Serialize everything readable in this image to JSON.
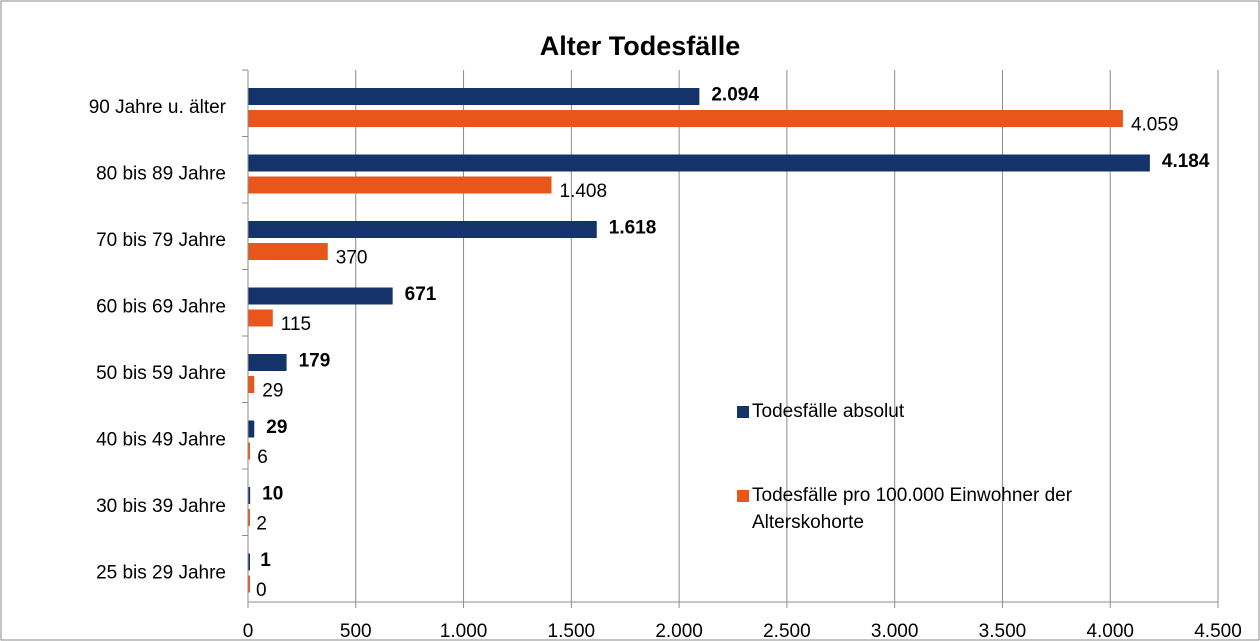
{
  "chart_data": {
    "type": "hbar",
    "title": "Alter Todesfälle",
    "categories": [
      "90 Jahre u. älter",
      "80 bis 89 Jahre",
      "70 bis 79 Jahre",
      "60 bis 69 Jahre",
      "50 bis 59 Jahre",
      "40 bis 49 Jahre",
      "30 bis 39 Jahre",
      "25 bis 29 Jahre"
    ],
    "series": [
      {
        "name": "Todesfälle absolut",
        "color": "#14336b",
        "values": [
          2094,
          4184,
          1618,
          671,
          179,
          29,
          10,
          1
        ],
        "value_labels": [
          "2.094",
          "4.184",
          "1.618",
          "671",
          "179",
          "29",
          "10",
          "1"
        ]
      },
      {
        "name": "Todesfälle pro 100.000 Einwohner der Alterskohorte",
        "color": "#e8561c",
        "values": [
          4059,
          1408,
          370,
          115,
          29,
          6,
          2,
          0
        ],
        "value_labels": [
          "4.059",
          "1.408",
          "370",
          "115",
          "29",
          "6",
          "2",
          "0"
        ]
      }
    ],
    "xlim": [
      0,
      4500
    ],
    "xticks": [
      0,
      500,
      {
        "value": 1000,
        "label": "1.000"
      },
      {
        "value": 1500,
        "label": "1.500"
      },
      {
        "value": 2000,
        "label": "2.000"
      },
      {
        "value": 2500,
        "label": "2.500"
      },
      {
        "value": 3000,
        "label": "3.000"
      },
      {
        "value": 3500,
        "label": "3.500"
      },
      {
        "value": 4000,
        "label": "4.000"
      },
      {
        "value": 4500,
        "label": "4.500"
      }
    ],
    "grid": true,
    "legend": "right"
  }
}
